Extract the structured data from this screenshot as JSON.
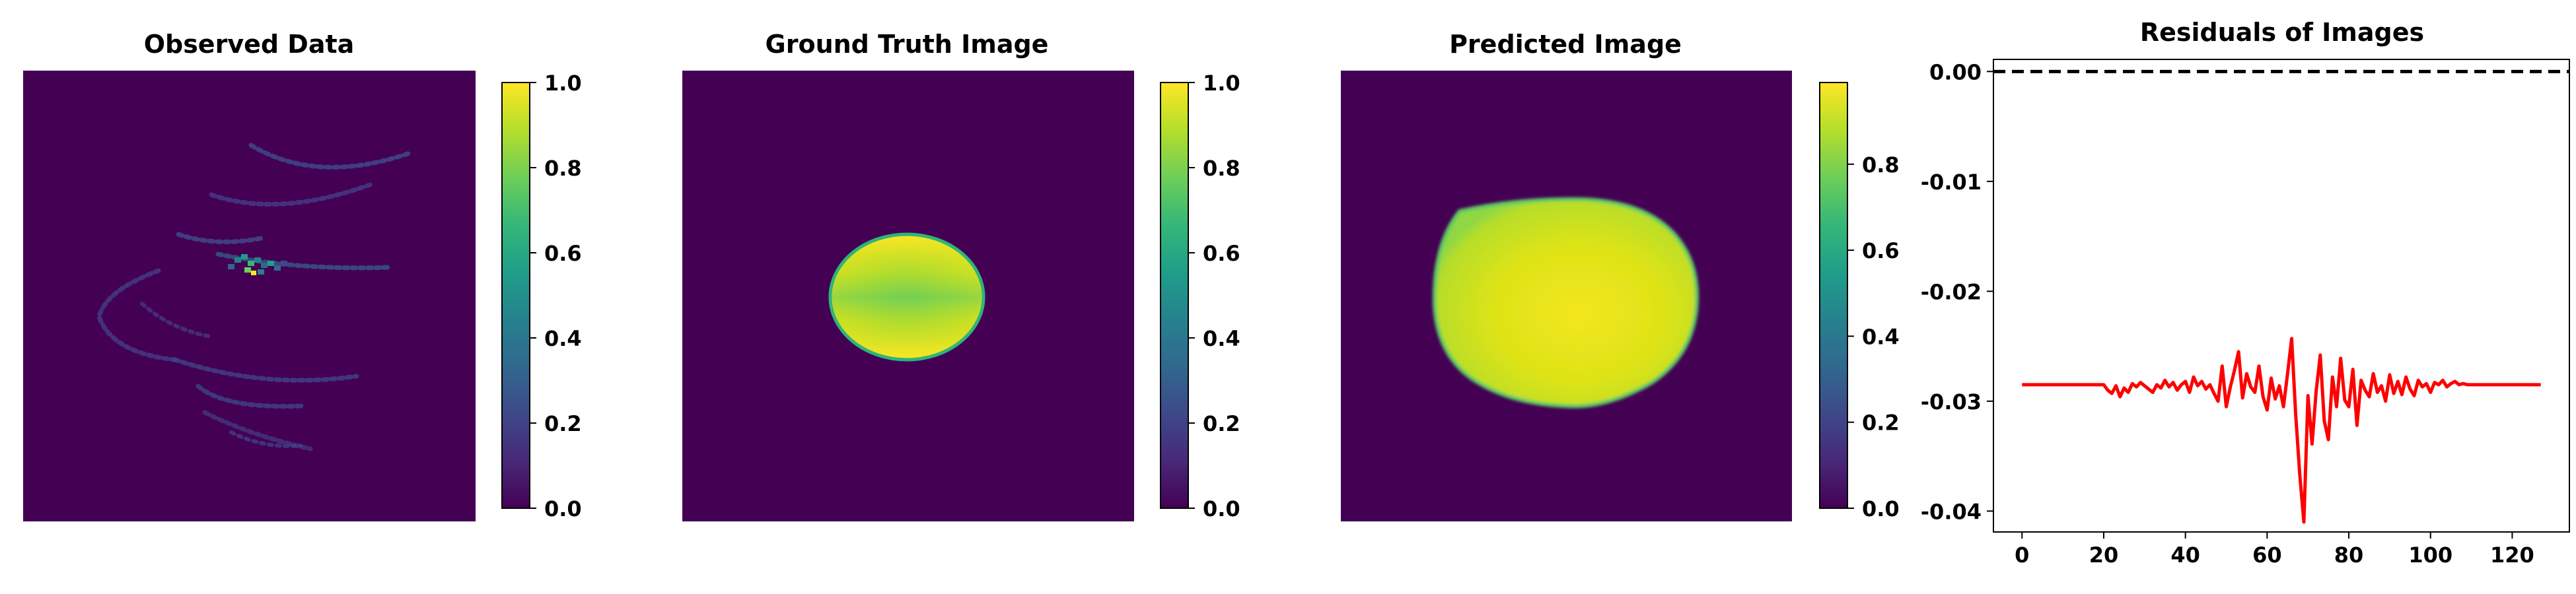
{
  "figure": {
    "panels": [
      {
        "title": "Observed Data"
      },
      {
        "title": "Ground Truth Image"
      },
      {
        "title": "Predicted Image"
      }
    ]
  },
  "colors": {
    "viridis": [
      "#440154",
      "#482878",
      "#3e4989",
      "#31688e",
      "#26828e",
      "#1f9e89",
      "#35b779",
      "#6ece58",
      "#b5de2b",
      "#fde725"
    ],
    "background_purple": "#440154",
    "residual_line": "#ff0000",
    "zero_line": "#000000"
  },
  "chart_data": [
    {
      "type": "heatmap",
      "title": "Observed Data",
      "description_visible": "dark field with faint spiral traces and a bright spot near the center",
      "colorbar": {
        "min": 0.0,
        "max": 1.0,
        "ticks": [
          "0.0",
          "0.2",
          "0.4",
          "0.6",
          "0.8",
          "1.0"
        ]
      }
    },
    {
      "type": "heatmap",
      "title": "Ground Truth Image",
      "colorbar": {
        "min": 0.0,
        "max": 1.0,
        "ticks": [
          "0.0",
          "0.2",
          "0.4",
          "0.6",
          "0.8",
          "1.0"
        ]
      }
    },
    {
      "type": "heatmap",
      "title": "Predicted Image",
      "colorbar": {
        "min": 0.0,
        "max": 1.0,
        "ticks": [
          "0.0",
          "0.2",
          "0.4",
          "0.6",
          "0.8"
        ]
      }
    },
    {
      "type": "line",
      "title": "Residuals of Images",
      "xlim": [
        -7,
        134
      ],
      "ylim": [
        -0.0419,
        0.0011
      ],
      "xticks": [
        "0",
        "20",
        "40",
        "60",
        "80",
        "100",
        "120"
      ],
      "yticks": [
        "0.00",
        "-0.01",
        "-0.02",
        "-0.03",
        "-0.04"
      ],
      "reference_line": {
        "y": 0.0,
        "style": "dashed"
      },
      "series": [
        {
          "x": [
            0,
            1,
            2,
            3,
            4,
            5,
            6,
            7,
            8,
            9,
            10,
            11,
            12,
            13,
            14,
            15,
            16,
            17,
            18,
            19,
            20,
            21,
            22,
            23,
            24,
            25,
            26,
            27,
            28,
            29,
            30,
            31,
            32,
            33,
            34,
            35,
            36,
            37,
            38,
            39,
            40,
            41,
            42,
            43,
            44,
            45,
            46,
            47,
            48,
            49,
            50,
            51,
            52,
            53,
            54,
            55,
            56,
            57,
            58,
            59,
            60,
            61,
            62,
            63,
            64,
            65,
            66,
            67,
            68,
            69,
            70,
            71,
            72,
            73,
            74,
            75,
            76,
            77,
            78,
            79,
            80,
            81,
            82,
            83,
            84,
            85,
            86,
            87,
            88,
            89,
            90,
            91,
            92,
            93,
            94,
            95,
            96,
            97,
            98,
            99,
            100,
            101,
            102,
            103,
            104,
            105,
            106,
            107,
            108,
            109,
            110,
            111,
            112,
            113,
            114,
            115,
            116,
            117,
            118,
            119,
            120,
            121,
            122,
            123,
            124,
            125,
            126,
            127
          ],
          "values": [
            -0.0285,
            -0.0285,
            -0.0285,
            -0.0285,
            -0.0285,
            -0.0285,
            -0.0285,
            -0.0285,
            -0.0285,
            -0.0285,
            -0.0285,
            -0.0285,
            -0.0285,
            -0.0285,
            -0.0285,
            -0.0285,
            -0.0285,
            -0.0285,
            -0.0285,
            -0.0285,
            -0.0285,
            -0.029,
            -0.0293,
            -0.0286,
            -0.0296,
            -0.0288,
            -0.0292,
            -0.0284,
            -0.0287,
            -0.0283,
            -0.0286,
            -0.0289,
            -0.0292,
            -0.0285,
            -0.0288,
            -0.0281,
            -0.0287,
            -0.0283,
            -0.029,
            -0.0285,
            -0.0282,
            -0.0292,
            -0.0278,
            -0.0286,
            -0.0282,
            -0.0289,
            -0.0285,
            -0.0293,
            -0.03,
            -0.0268,
            -0.0305,
            -0.0287,
            -0.0272,
            -0.0255,
            -0.0297,
            -0.0275,
            -0.0287,
            -0.0292,
            -0.0268,
            -0.0296,
            -0.0308,
            -0.0279,
            -0.0298,
            -0.0286,
            -0.0305,
            -0.0275,
            -0.0243,
            -0.0312,
            -0.0367,
            -0.041,
            -0.0295,
            -0.0339,
            -0.0291,
            -0.0258,
            -0.0318,
            -0.0335,
            -0.0278,
            -0.0305,
            -0.0261,
            -0.0299,
            -0.0305,
            -0.0271,
            -0.0322,
            -0.0281,
            -0.029,
            -0.0296,
            -0.0275,
            -0.0292,
            -0.0286,
            -0.03,
            -0.0276,
            -0.0293,
            -0.0282,
            -0.0294,
            -0.0278,
            -0.0289,
            -0.0295,
            -0.0281,
            -0.0287,
            -0.0284,
            -0.0292,
            -0.0283,
            -0.0285,
            -0.0281,
            -0.0287,
            -0.0284,
            -0.0282,
            -0.0285,
            -0.0284,
            -0.0285,
            -0.0285,
            -0.0285,
            -0.0285,
            -0.0285,
            -0.0285,
            -0.0285,
            -0.0285,
            -0.0285,
            -0.0285,
            -0.0285,
            -0.0285,
            -0.0285,
            -0.0285,
            -0.0285,
            -0.0285,
            -0.0285,
            -0.0285,
            -0.0285
          ]
        }
      ]
    }
  ]
}
